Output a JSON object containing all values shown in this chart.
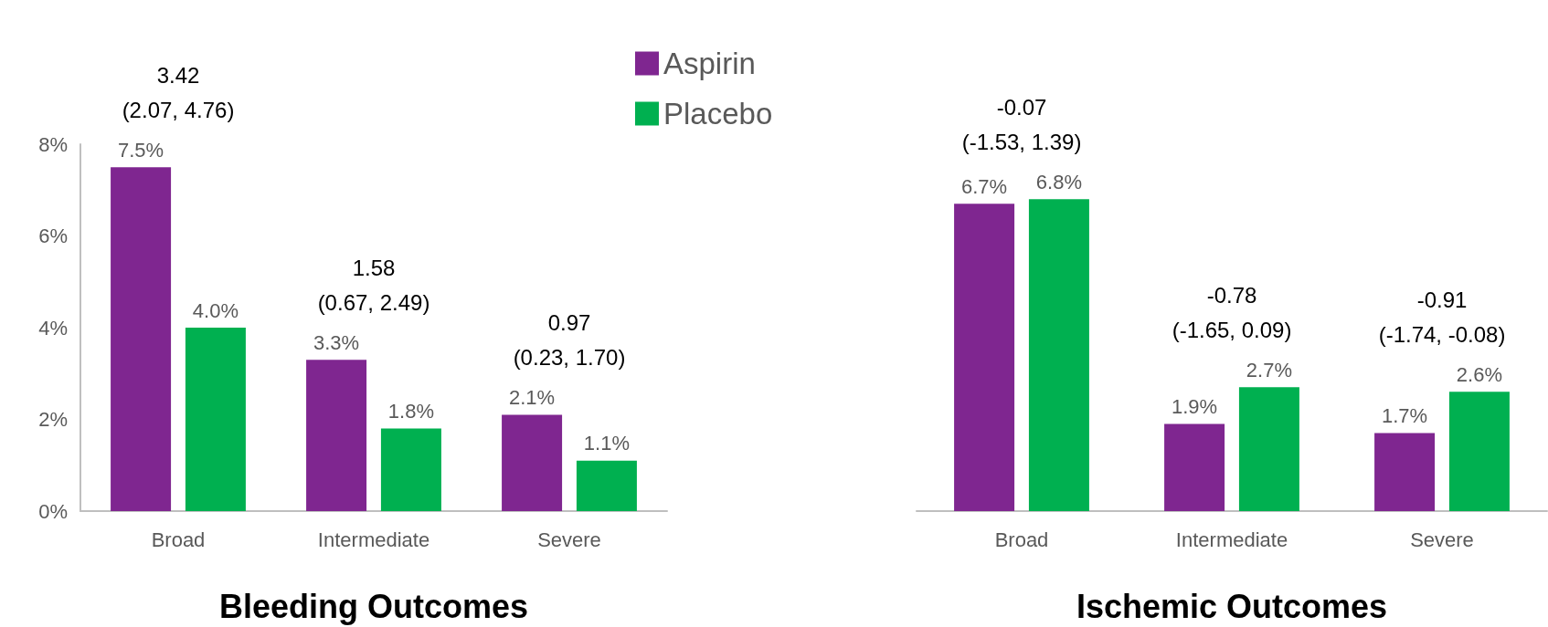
{
  "chart_data": [
    {
      "type": "bar",
      "xlabel": "Bleeding Outcomes",
      "categories": [
        "Broad",
        "Intermediate",
        "Severe"
      ],
      "series": [
        {
          "name": "Aspirin",
          "color": "#7f2690",
          "values": [
            7.5,
            3.3,
            2.1
          ],
          "value_labels": [
            "7.5%",
            "3.3%",
            "2.1%"
          ]
        },
        {
          "name": "Placebo",
          "color": "#00b050",
          "values": [
            4.0,
            1.8,
            1.1
          ],
          "value_labels": [
            "4.0%",
            "1.8%",
            "1.1%"
          ]
        }
      ],
      "ylim": [
        0,
        8
      ],
      "yticks": [
        {
          "value": 0,
          "label": "0%"
        },
        {
          "value": 2,
          "label": "2%"
        },
        {
          "value": 4,
          "label": "4%"
        },
        {
          "value": 6,
          "label": "6%"
        },
        {
          "value": 8,
          "label": "8%"
        }
      ],
      "grid": false,
      "legend": "top right",
      "annotations": [
        "3.42\n(2.07, 4.76)",
        "1.58\n(0.67, 2.49)",
        "0.97\n(0.23, 1.70)"
      ]
    },
    {
      "type": "bar",
      "xlabel": "Ischemic Outcomes",
      "categories": [
        "Broad",
        "Intermediate",
        "Severe"
      ],
      "series": [
        {
          "color": "#7f2690",
          "values": [
            6.7,
            1.9,
            1.7
          ],
          "value_labels": [
            "6.7%",
            "1.9%",
            "1.7%"
          ]
        },
        {
          "color": "#00b050",
          "values": [
            6.8,
            2.7,
            2.6
          ],
          "value_labels": [
            "6.8%",
            "2.7%",
            "2.6%"
          ]
        }
      ],
      "ylim": [
        0,
        8
      ],
      "grid": false,
      "tick_labels": "x",
      "legend": false,
      "annotations": [
        "-0.07\n(-1.53, 1.39)",
        "-0.78\n(-1.65, 0.09)",
        "-0.91\n(-1.74, -0.08)"
      ]
    }
  ]
}
